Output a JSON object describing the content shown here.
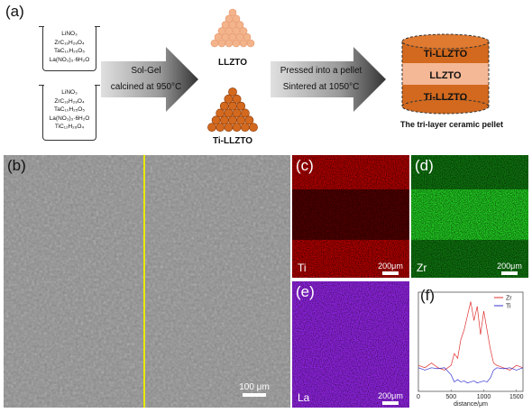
{
  "panel_labels": {
    "a": "(a)",
    "b": "(b)",
    "c": "(c)",
    "d": "(d)",
    "e": "(e)",
    "f": "(f)"
  },
  "beaker1": [
    "LiNO₃",
    "ZrC₁₆H₂₈O₄",
    "TaC₁₀H₂₅O₅",
    "La(NO₃)₃·6H₂O"
  ],
  "beaker2": [
    "LiNO₃",
    "ZrC₁₆H₂₈O₄",
    "TaC₁₀H₂₅O₅",
    "La(NO₃)₃·6H₂O",
    "TiC₁₂H₂₈O₄"
  ],
  "arrow1": {
    "line1": "Sol-Gel",
    "line2": "calcined at 950°C"
  },
  "arrow2": {
    "line1": "Pressed into a pellet",
    "line2": "Sintered at 1050°C"
  },
  "products": {
    "top": "LLZTO",
    "bottom": "Ti-LLZTO"
  },
  "pellet": {
    "layers": [
      "Ti-LLZTO",
      "LLZTO",
      "Ti-LLZTO"
    ],
    "caption": "The tri-layer ceramic pellet"
  },
  "maps": {
    "ti": "Ti",
    "zr": "Zr",
    "la": "La",
    "scale": "200μm"
  },
  "sem": {
    "scale": "100 μm"
  },
  "colors": {
    "ti": "#d00000",
    "zr": "#18c418",
    "la": "#8a22d8",
    "pellet_dark": "#d2691e",
    "pellet_light": "#f5b896",
    "line": "#e8e800"
  },
  "chart_data": {
    "type": "line",
    "xlabel": "distance/μm",
    "xticks": [
      "0",
      "500",
      "1000",
      "1500"
    ],
    "xlim": [
      0,
      1600
    ],
    "grid": false,
    "legend": "top-right",
    "series": [
      {
        "name": "Zr",
        "color": "#e03030",
        "x": [
          0,
          100,
          200,
          300,
          400,
          500,
          550,
          600,
          650,
          700,
          750,
          800,
          850,
          900,
          950,
          1000,
          1050,
          1100,
          1150,
          1200,
          1300,
          1400,
          1500,
          1600
        ],
        "y": [
          0.55,
          0.5,
          0.6,
          0.5,
          0.45,
          0.55,
          0.8,
          0.7,
          1.1,
          1.3,
          1.6,
          1.9,
          1.5,
          1.8,
          1.2,
          1.7,
          1.3,
          0.9,
          0.6,
          0.55,
          0.5,
          0.45,
          0.55,
          0.5
        ]
      },
      {
        "name": "Ti",
        "color": "#3030d0",
        "x": [
          0,
          100,
          200,
          300,
          400,
          500,
          550,
          600,
          650,
          700,
          750,
          800,
          850,
          900,
          950,
          1000,
          1050,
          1100,
          1150,
          1200,
          1300,
          1400,
          1500,
          1600
        ],
        "y": [
          0.5,
          0.45,
          0.5,
          0.48,
          0.5,
          0.35,
          0.2,
          0.25,
          0.2,
          0.22,
          0.18,
          0.2,
          0.22,
          0.18,
          0.2,
          0.22,
          0.2,
          0.28,
          0.45,
          0.5,
          0.48,
          0.5,
          0.45,
          0.5
        ]
      }
    ]
  }
}
